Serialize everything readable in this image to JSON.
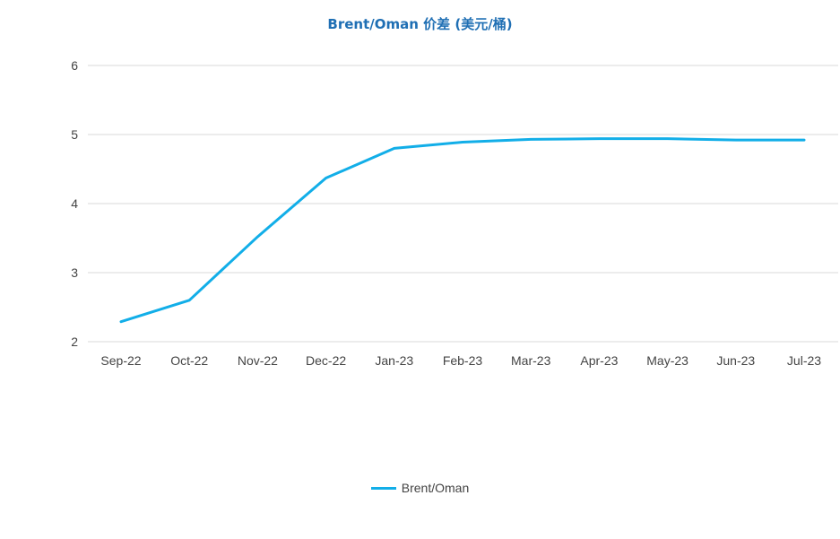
{
  "chart_data": {
    "type": "line",
    "title": "Brent/Oman 价差 (美元/桶)",
    "xlabel": "",
    "ylabel": "",
    "categories": [
      "Sep-22",
      "Oct-22",
      "Nov-22",
      "Dec-22",
      "Jan-23",
      "Feb-23",
      "Mar-23",
      "Apr-23",
      "May-23",
      "Jun-23",
      "Jul-23"
    ],
    "ylim": [
      2,
      6
    ],
    "yticks": [
      "2",
      "3",
      "4",
      "5",
      "6"
    ],
    "grid": true,
    "legend_position": "bottom",
    "series": [
      {
        "name": "Brent/Oman",
        "color": "#12aee8",
        "values": [
          2.29,
          2.6,
          3.52,
          4.37,
          4.8,
          4.89,
          4.93,
          4.94,
          4.94,
          4.92,
          4.92
        ]
      }
    ]
  }
}
